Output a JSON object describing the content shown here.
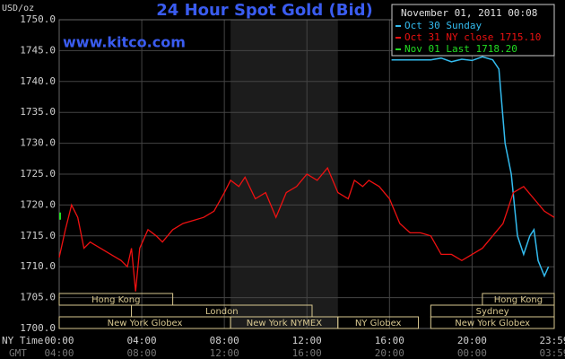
{
  "chart_data": {
    "type": "line",
    "title": "24 Hour Spot Gold (Bid)",
    "source": "www.kitco.com",
    "y_label": "USD/oz",
    "timestamp": "November 01, 2011 00:08",
    "x_row_labels": [
      "NY Time",
      "GMT"
    ],
    "xlim": [
      0,
      23.98
    ],
    "xticks": [
      {
        "value": 0,
        "label": "00:00"
      },
      {
        "value": 4,
        "label": "04:00"
      },
      {
        "value": 8,
        "label": "08:00"
      },
      {
        "value": 12,
        "label": "12:00"
      },
      {
        "value": 16,
        "label": "16:00"
      },
      {
        "value": 20,
        "label": "20:00"
      },
      {
        "value": 23.98,
        "label": "23:59"
      }
    ],
    "gmt_labels": [
      "04:00",
      "08:00",
      "12:00",
      "16:00",
      "20:00",
      "00:00",
      "03:59"
    ],
    "ylim": [
      1700,
      1750
    ],
    "yticks": [
      {
        "value": 1700,
        "label": "1700.0"
      },
      {
        "value": 1705,
        "label": "1705.0"
      },
      {
        "value": 1710,
        "label": "1710.0"
      },
      {
        "value": 1715,
        "label": "1715.0"
      },
      {
        "value": 1720,
        "label": "1720.0"
      },
      {
        "value": 1725,
        "label": "1725.0"
      },
      {
        "value": 1730,
        "label": "1730.0"
      },
      {
        "value": 1735,
        "label": "1735.0"
      },
      {
        "value": 1740,
        "label": "1740.0"
      },
      {
        "value": 1745,
        "label": "1745.0"
      },
      {
        "value": 1750,
        "label": "1750.0"
      }
    ],
    "grid": true,
    "series": [
      {
        "name": "Oct 30 Sunday",
        "color": "#33bbee",
        "x": [
          16.1,
          17.8,
          18.0,
          18.5,
          19.0,
          19.5,
          20.0,
          20.5,
          21.0,
          21.3,
          21.6,
          21.9,
          22.2,
          22.5,
          22.8,
          23.0,
          23.2,
          23.5,
          23.7
        ],
        "values": [
          1743.5,
          1743.5,
          1743.5,
          1743.8,
          1743.2,
          1743.6,
          1743.4,
          1744,
          1743.5,
          1742,
          1730,
          1725,
          1715,
          1712,
          1715,
          1716,
          1711,
          1708.5,
          1710
        ]
      },
      {
        "name": "Oct 31 NY close 1715.10",
        "color": "#ee1111",
        "x": [
          0,
          0.3,
          0.6,
          0.9,
          1.2,
          1.5,
          2.0,
          2.5,
          3.0,
          3.3,
          3.5,
          3.7,
          3.9,
          4.3,
          4.7,
          5.0,
          5.5,
          6.0,
          6.5,
          7.0,
          7.5,
          8.0,
          8.3,
          8.7,
          9.0,
          9.5,
          10.0,
          10.5,
          11.0,
          11.5,
          12.0,
          12.5,
          13.0,
          13.5,
          14.0,
          14.3,
          14.7,
          15.0,
          15.5,
          16.0,
          16.5,
          17.0,
          17.5,
          18.0,
          18.5,
          19.0,
          19.5,
          20.0,
          20.5,
          21.0,
          21.5,
          22.0,
          22.5,
          23.0,
          23.5,
          23.98
        ],
        "values": [
          1711.5,
          1716,
          1720,
          1718,
          1713,
          1714,
          1713,
          1712,
          1711,
          1710,
          1713,
          1706,
          1713,
          1716,
          1715,
          1714,
          1716,
          1717,
          1717.5,
          1718,
          1719,
          1722,
          1724,
          1723,
          1724.5,
          1721,
          1722,
          1718,
          1722,
          1723,
          1725,
          1724,
          1726,
          1722,
          1721,
          1724,
          1723,
          1724,
          1723,
          1721,
          1717,
          1715.5,
          1715.5,
          1715,
          1712,
          1712,
          1711,
          1712,
          1713,
          1715,
          1717,
          1722,
          1723,
          1721,
          1719,
          1718
        ]
      },
      {
        "name": "Nov 01 Last 1718.20",
        "color": "#22dd22",
        "x": [
          0
        ],
        "values": [
          1718.2
        ]
      }
    ],
    "sessions": [
      {
        "label": "Hong Kong",
        "start": 0,
        "end": 5.5,
        "row": 0
      },
      {
        "label": "London",
        "start": 3.5,
        "end": 12.25,
        "row": 1
      },
      {
        "label": "New York Globex",
        "start": 0,
        "end": 8.3,
        "row": 2
      },
      {
        "label": "New York NYMEX",
        "start": 8.3,
        "end": 13.5,
        "row": 2,
        "highlight": true
      },
      {
        "label": "NY Globex",
        "start": 13.5,
        "end": 17.4,
        "row": 2
      },
      {
        "label": "Sydney",
        "start": 18,
        "end": 23.98,
        "row": 1
      },
      {
        "label": "Hong Kong",
        "start": 20.5,
        "end": 23.98,
        "row": 0
      },
      {
        "label": "New York Globex",
        "start": 18,
        "end": 23.98,
        "row": 2
      }
    ]
  }
}
